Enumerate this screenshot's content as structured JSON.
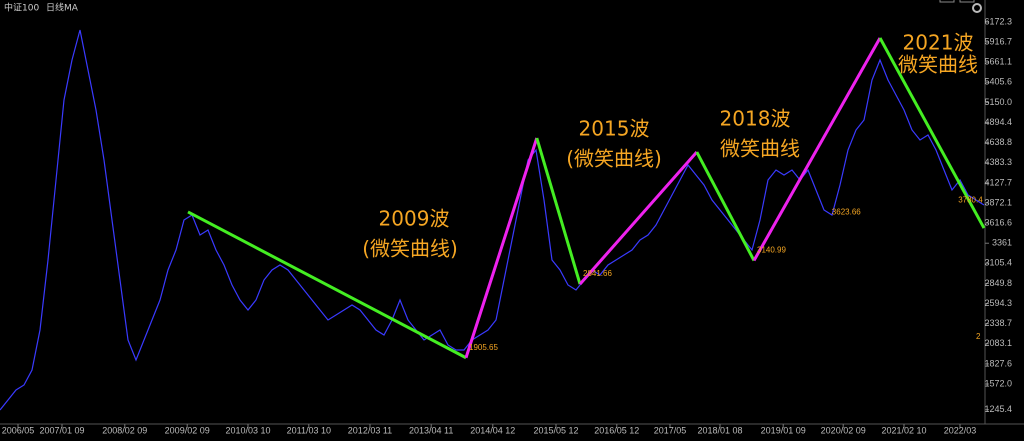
{
  "chart_data": {
    "type": "line",
    "header": [
      "中证100",
      "日线",
      "MA"
    ],
    "series": [
      {
        "color": "#3a3aff",
        "values": [
          1242,
          1369,
          1496,
          1559,
          1750,
          2258,
          3148,
          4164,
          5181,
          5689,
          6071,
          5562,
          5054,
          4419,
          3656,
          2894,
          2131,
          1877,
          2131,
          2385,
          2639,
          3021,
          3275,
          3656,
          3720,
          3465,
          3529,
          3275,
          3084,
          2830,
          2639,
          2512,
          2639,
          2894,
          3021,
          3084,
          3021,
          2894,
          2766,
          2639,
          2512,
          2385,
          2449,
          2512,
          2576,
          2512,
          2385,
          2258,
          2195,
          2385,
          2639,
          2385,
          2258,
          2131,
          2195,
          2258,
          2068,
          2004,
          2004,
          2131,
          2195,
          2258,
          2385,
          2894,
          3402,
          3910,
          4419,
          4546,
          3910,
          3148,
          3021,
          2830,
          2766,
          2894,
          3021,
          2957,
          3084,
          3148,
          3211,
          3275,
          3402,
          3465,
          3593,
          3783,
          3974,
          4164,
          4355,
          4228,
          4101,
          3910,
          3783,
          3656,
          3529,
          3402,
          3275,
          3656,
          4164,
          4291,
          4228,
          4291,
          4164,
          4291,
          4037,
          3783,
          3720,
          4101,
          4546,
          4800,
          4927,
          5435,
          5689,
          5435,
          5245,
          5054,
          4800,
          4673,
          4736,
          4546,
          4291,
          4037,
          4164,
          3974,
          3910,
          3847
        ]
      }
    ],
    "xlim": [
      0,
      123
    ],
    "xticks": [
      {
        "value": 2.25,
        "label": "2006/05"
      },
      {
        "value": 7.75,
        "label": "2007/01 09"
      },
      {
        "value": 15.6,
        "label": "2008/02 09"
      },
      {
        "value": 23.4,
        "label": "2009/02 09"
      },
      {
        "value": 31,
        "label": "2010/03 10"
      },
      {
        "value": 38.6,
        "label": "2011/03 10"
      },
      {
        "value": 46.25,
        "label": "2012/03 11"
      },
      {
        "value": 53.9,
        "label": "2013/04 11"
      },
      {
        "value": 61.6,
        "label": "2014/04 12"
      },
      {
        "value": 69.5,
        "label": "2015/05 12"
      },
      {
        "value": 77.1,
        "label": "2016/05 12"
      },
      {
        "value": 83.75,
        "label": "2017/05"
      },
      {
        "value": 90,
        "label": "2018/01 08"
      },
      {
        "value": 97.9,
        "label": "2019/01 09"
      },
      {
        "value": 105.4,
        "label": "2020/02 09"
      },
      {
        "value": 113,
        "label": "2021/02 10"
      },
      {
        "value": 120,
        "label": "2022/03"
      }
    ],
    "ylim": [
      1245.4,
      6172.3
    ],
    "yticks": [
      6172.3,
      5916.7,
      5661.1,
      5405.6,
      {
        "value": 5150,
        "label": "5150.0"
      },
      4894.4,
      4638.8,
      4383.3,
      4127.7,
      3872.1,
      3616.6,
      3361,
      3105.4,
      2849.8,
      2594.3,
      2338.7,
      2083.1,
      1827.6,
      {
        "value": 1572,
        "label": "1572.0"
      },
      1245.4
    ],
    "segments": [
      {
        "color": "#44ee22",
        "points": [
          [
            23.5,
            3758
          ],
          [
            58.25,
            1905.65
          ]
        ]
      },
      {
        "color": "#ee22ee",
        "points": [
          [
            58.25,
            1905.65
          ],
          [
            67.1,
            4698
          ]
        ]
      },
      {
        "color": "#44ee22",
        "points": [
          [
            67.1,
            4698
          ],
          [
            72.5,
            2841.66
          ]
        ]
      },
      {
        "color": "#ee22ee",
        "points": [
          [
            72.5,
            2841.66
          ],
          [
            87.1,
            4520
          ]
        ]
      },
      {
        "color": "#44ee22",
        "points": [
          [
            87.1,
            4520
          ],
          [
            94.25,
            3140.99
          ]
        ]
      },
      {
        "color": "#ee22ee",
        "points": [
          [
            94.25,
            3140.99
          ],
          [
            110,
            5969
          ]
        ]
      },
      {
        "color": "#44ee22",
        "points": [
          [
            110,
            5969
          ],
          [
            123,
            3554
          ]
        ]
      }
    ],
    "point_labels": [
      {
        "x": 58.25,
        "value": 1905.65
      },
      {
        "x": 72.5,
        "value": 2841.66
      },
      {
        "x": 94.25,
        "value": 3140.99
      },
      {
        "x": 103.6,
        "value": 3623.66
      },
      {
        "x": 119.4,
        "value": 3780.4
      }
    ],
    "annotations": [
      "2009波",
      "(微笑曲线)",
      "2015波",
      "(微笑曲线)",
      "2018波",
      "微笑曲线",
      "2021波",
      "微笑曲线",
      "2"
    ]
  }
}
